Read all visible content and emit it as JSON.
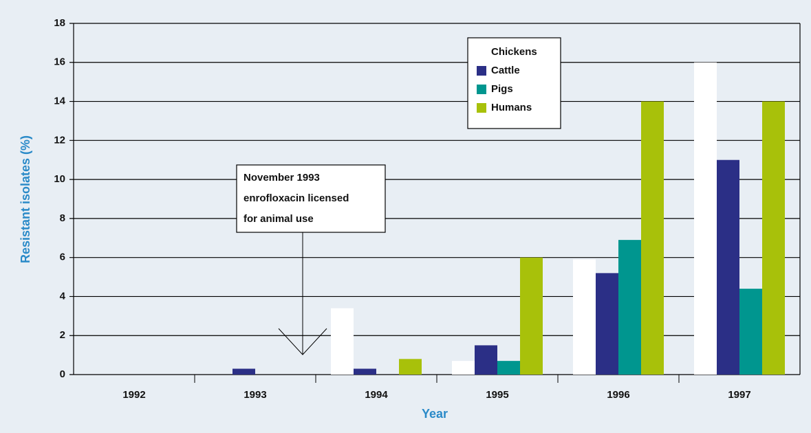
{
  "chart_data": {
    "type": "bar",
    "x_label": "Year",
    "y_label": "Resistant isolates (%)",
    "categories": [
      "1992",
      "1993",
      "1994",
      "1995",
      "1996",
      "1997"
    ],
    "series": [
      {
        "name": "Chickens",
        "color": "#ffffff",
        "values": [
          0,
          0,
          3.4,
          0.7,
          5.9,
          16
        ]
      },
      {
        "name": "Cattle",
        "color": "#2b2f86",
        "values": [
          0,
          0.3,
          0.3,
          1.5,
          5.2,
          11
        ]
      },
      {
        "name": "Pigs",
        "color": "#00968f",
        "values": [
          0,
          0,
          0,
          0.7,
          6.9,
          4.4
        ]
      },
      {
        "name": "Humans",
        "color": "#a8c10a",
        "values": [
          0,
          0,
          0.8,
          6,
          14,
          14
        ]
      }
    ],
    "ylim": [
      0,
      18
    ],
    "yticks": [
      0,
      2,
      4,
      6,
      8,
      10,
      12,
      14,
      16,
      18
    ],
    "grid": true,
    "annotation": [
      "November 1993",
      "enrofloxacin licensed",
      "for animal use"
    ]
  }
}
